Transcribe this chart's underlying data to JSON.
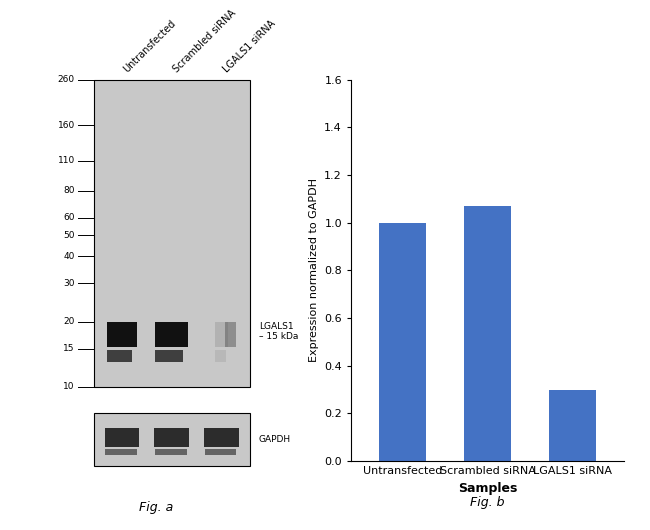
{
  "bar_values": [
    1.0,
    1.07,
    0.3
  ],
  "bar_categories": [
    "Untransfected",
    "Scrambled siRNA",
    "LGALS1 siRNA"
  ],
  "bar_color": "#4472C4",
  "bar_ylabel": "Expression normalized to GAPDH",
  "bar_xlabel": "Samples",
  "bar_ylim": [
    0,
    1.6
  ],
  "bar_yticks": [
    0,
    0.2,
    0.4,
    0.6,
    0.8,
    1.0,
    1.2,
    1.4,
    1.6
  ],
  "fig_a_label": "Fig. a",
  "fig_b_label": "Fig. b",
  "wb_ladder_labels": [
    "260",
    "160",
    "110",
    "80",
    "60",
    "50",
    "40",
    "30",
    "20",
    "15",
    "10"
  ],
  "wb_band_label": "LGALS1\n– 15 kDa",
  "wb_gapdh_label": "GAPDH",
  "wb_col_labels": [
    "Untransfected",
    "Scrambled siRNA",
    "LGALS1 siRNA"
  ],
  "background_color": "#ffffff"
}
